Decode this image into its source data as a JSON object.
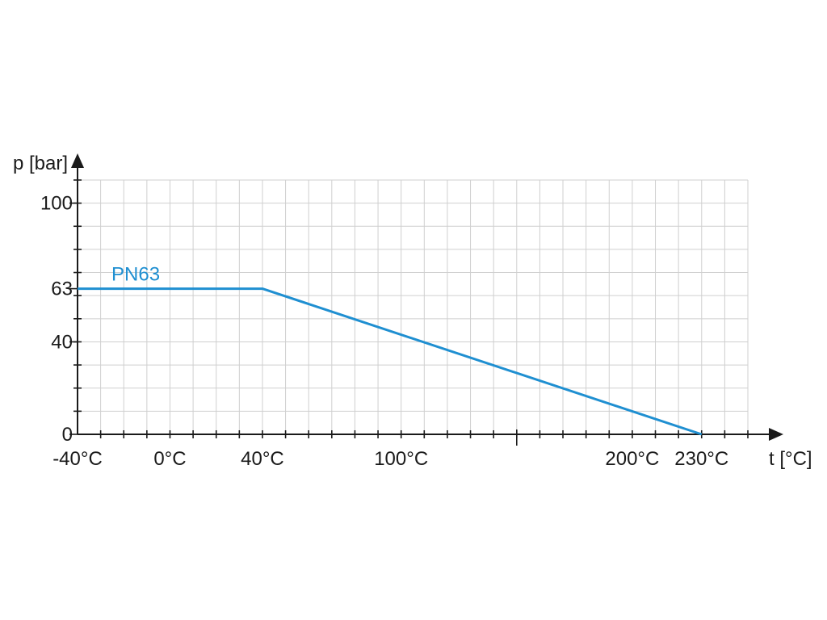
{
  "chart_data": {
    "type": "line",
    "xlabel": "t [°C]",
    "ylabel": "p [bar]",
    "xlim": [
      -40,
      250
    ],
    "ylim": [
      0,
      110
    ],
    "grid": true,
    "x_ticks": [
      {
        "value": -40,
        "label": "-40°C"
      },
      {
        "value": 0,
        "label": "0°C"
      },
      {
        "value": 40,
        "label": "40°C"
      },
      {
        "value": 100,
        "label": "100°C"
      },
      {
        "value": 200,
        "label": "200°C"
      },
      {
        "value": 230,
        "label": "230°C"
      }
    ],
    "y_ticks": [
      {
        "value": 0,
        "label": "0"
      },
      {
        "value": 40,
        "label": "40"
      },
      {
        "value": 63,
        "label": "63"
      },
      {
        "value": 100,
        "label": "100"
      }
    ],
    "series": [
      {
        "name": "PN63",
        "color": "#1f8fd1",
        "x": [
          -40,
          40,
          230
        ],
        "y": [
          63,
          63,
          0
        ]
      }
    ]
  }
}
